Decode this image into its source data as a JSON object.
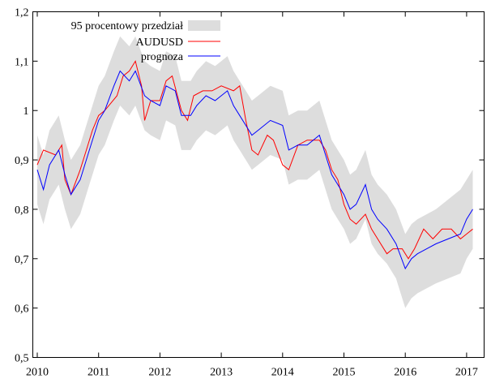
{
  "chart_data": {
    "type": "line",
    "title": "",
    "xlabel": "",
    "ylabel": "",
    "xlim": [
      2009.92,
      2017.28
    ],
    "ylim": [
      0.5,
      1.2
    ],
    "xticks": [
      2010,
      2011,
      2012,
      2013,
      2014,
      2015,
      2016,
      2017
    ],
    "xtick_labels": [
      "2010",
      "2011",
      "2012",
      "2013",
      "2014",
      "2015",
      "2016",
      "2017"
    ],
    "yticks": [
      0.5,
      0.6,
      0.7,
      0.8,
      0.9,
      1.0,
      1.1,
      1.2
    ],
    "ytick_labels": [
      "0,5",
      "0,6",
      "0,7",
      "0,8",
      "0,9",
      "1",
      "1,1",
      "1,2"
    ],
    "grid": false,
    "legend_position": "top-left",
    "band": {
      "name": "95 procentowy przedział",
      "color": "#dddddd",
      "x": [
        2010.0,
        2010.1,
        2010.2,
        2010.35,
        2010.45,
        2010.55,
        2010.7,
        2010.85,
        2011.0,
        2011.1,
        2011.25,
        2011.35,
        2011.5,
        2011.6,
        2011.75,
        2011.85,
        2012.0,
        2012.1,
        2012.25,
        2012.35,
        2012.5,
        2012.6,
        2012.75,
        2012.9,
        2013.1,
        2013.2,
        2013.3,
        2013.4,
        2013.5,
        2013.6,
        2013.8,
        2014.0,
        2014.1,
        2014.25,
        2014.4,
        2014.6,
        2014.7,
        2014.8,
        2014.9,
        2015.0,
        2015.1,
        2015.2,
        2015.35,
        2015.45,
        2015.55,
        2015.7,
        2015.85,
        2016.0,
        2016.1,
        2016.2,
        2016.35,
        2016.5,
        2016.7,
        2016.9,
        2017.0,
        2017.1
      ],
      "upper": [
        0.95,
        0.91,
        0.96,
        0.99,
        0.94,
        0.9,
        0.93,
        0.99,
        1.05,
        1.07,
        1.12,
        1.15,
        1.13,
        1.15,
        1.1,
        1.09,
        1.08,
        1.12,
        1.11,
        1.06,
        1.06,
        1.08,
        1.1,
        1.09,
        1.11,
        1.08,
        1.06,
        1.04,
        1.02,
        1.03,
        1.05,
        1.04,
        0.99,
        1.0,
        1.0,
        1.02,
        0.98,
        0.94,
        0.92,
        0.9,
        0.87,
        0.88,
        0.92,
        0.87,
        0.85,
        0.83,
        0.8,
        0.75,
        0.77,
        0.78,
        0.79,
        0.8,
        0.82,
        0.84,
        0.86,
        0.88
      ],
      "lower": [
        0.81,
        0.77,
        0.82,
        0.85,
        0.8,
        0.76,
        0.79,
        0.85,
        0.91,
        0.93,
        0.98,
        1.01,
        0.99,
        1.01,
        0.96,
        0.95,
        0.94,
        0.98,
        0.97,
        0.92,
        0.92,
        0.94,
        0.96,
        0.95,
        0.97,
        0.94,
        0.92,
        0.9,
        0.88,
        0.89,
        0.91,
        0.9,
        0.85,
        0.86,
        0.86,
        0.88,
        0.84,
        0.8,
        0.78,
        0.76,
        0.73,
        0.74,
        0.78,
        0.73,
        0.71,
        0.69,
        0.66,
        0.6,
        0.62,
        0.63,
        0.64,
        0.65,
        0.66,
        0.67,
        0.7,
        0.72
      ]
    },
    "series": [
      {
        "name": "AUDUSD",
        "color": "#ff0000",
        "x": [
          2010.0,
          2010.1,
          2010.3,
          2010.4,
          2010.45,
          2010.55,
          2010.7,
          2010.8,
          2010.9,
          2011.0,
          2011.1,
          2011.3,
          2011.4,
          2011.5,
          2011.6,
          2011.7,
          2011.75,
          2011.85,
          2012.0,
          2012.1,
          2012.2,
          2012.35,
          2012.45,
          2012.55,
          2012.7,
          2012.85,
          2013.0,
          2013.2,
          2013.3,
          2013.4,
          2013.5,
          2013.6,
          2013.75,
          2013.85,
          2014.0,
          2014.1,
          2014.25,
          2014.4,
          2014.6,
          2014.7,
          2014.8,
          2014.9,
          2015.0,
          2015.1,
          2015.2,
          2015.35,
          2015.45,
          2015.55,
          2015.7,
          2015.8,
          2015.95,
          2016.05,
          2016.15,
          2016.3,
          2016.45,
          2016.6,
          2016.75,
          2016.9,
          2017.0,
          2017.1
        ],
        "y": [
          0.89,
          0.92,
          0.91,
          0.93,
          0.86,
          0.83,
          0.88,
          0.92,
          0.96,
          0.99,
          1.0,
          1.03,
          1.07,
          1.08,
          1.1,
          1.05,
          0.98,
          1.02,
          1.02,
          1.06,
          1.07,
          1.0,
          0.98,
          1.03,
          1.04,
          1.04,
          1.05,
          1.04,
          1.05,
          0.98,
          0.92,
          0.91,
          0.95,
          0.94,
          0.89,
          0.88,
          0.93,
          0.94,
          0.94,
          0.92,
          0.88,
          0.86,
          0.81,
          0.78,
          0.77,
          0.79,
          0.76,
          0.74,
          0.71,
          0.72,
          0.72,
          0.7,
          0.72,
          0.76,
          0.74,
          0.76,
          0.76,
          0.74,
          0.75,
          0.76
        ]
      },
      {
        "name": "prognoza",
        "color": "#0000ff",
        "x": [
          2010.0,
          2010.1,
          2010.2,
          2010.35,
          2010.45,
          2010.55,
          2010.7,
          2010.85,
          2011.0,
          2011.1,
          2011.25,
          2011.35,
          2011.5,
          2011.6,
          2011.75,
          2011.85,
          2012.0,
          2012.1,
          2012.25,
          2012.35,
          2012.5,
          2012.6,
          2012.75,
          2012.9,
          2013.1,
          2013.2,
          2013.3,
          2013.4,
          2013.5,
          2013.6,
          2013.8,
          2014.0,
          2014.1,
          2014.25,
          2014.4,
          2014.6,
          2014.7,
          2014.8,
          2014.9,
          2015.0,
          2015.1,
          2015.2,
          2015.35,
          2015.45,
          2015.55,
          2015.7,
          2015.85,
          2016.0,
          2016.1,
          2016.2,
          2016.35,
          2016.5,
          2016.7,
          2016.9,
          2017.0,
          2017.1
        ],
        "y": [
          0.88,
          0.84,
          0.89,
          0.92,
          0.87,
          0.83,
          0.86,
          0.92,
          0.98,
          1.0,
          1.05,
          1.08,
          1.06,
          1.08,
          1.03,
          1.02,
          1.01,
          1.05,
          1.04,
          0.99,
          0.99,
          1.01,
          1.03,
          1.02,
          1.04,
          1.01,
          0.99,
          0.97,
          0.95,
          0.96,
          0.98,
          0.97,
          0.92,
          0.93,
          0.93,
          0.95,
          0.91,
          0.87,
          0.85,
          0.83,
          0.8,
          0.81,
          0.85,
          0.8,
          0.78,
          0.76,
          0.73,
          0.68,
          0.7,
          0.71,
          0.72,
          0.73,
          0.74,
          0.75,
          0.78,
          0.8
        ]
      }
    ]
  }
}
